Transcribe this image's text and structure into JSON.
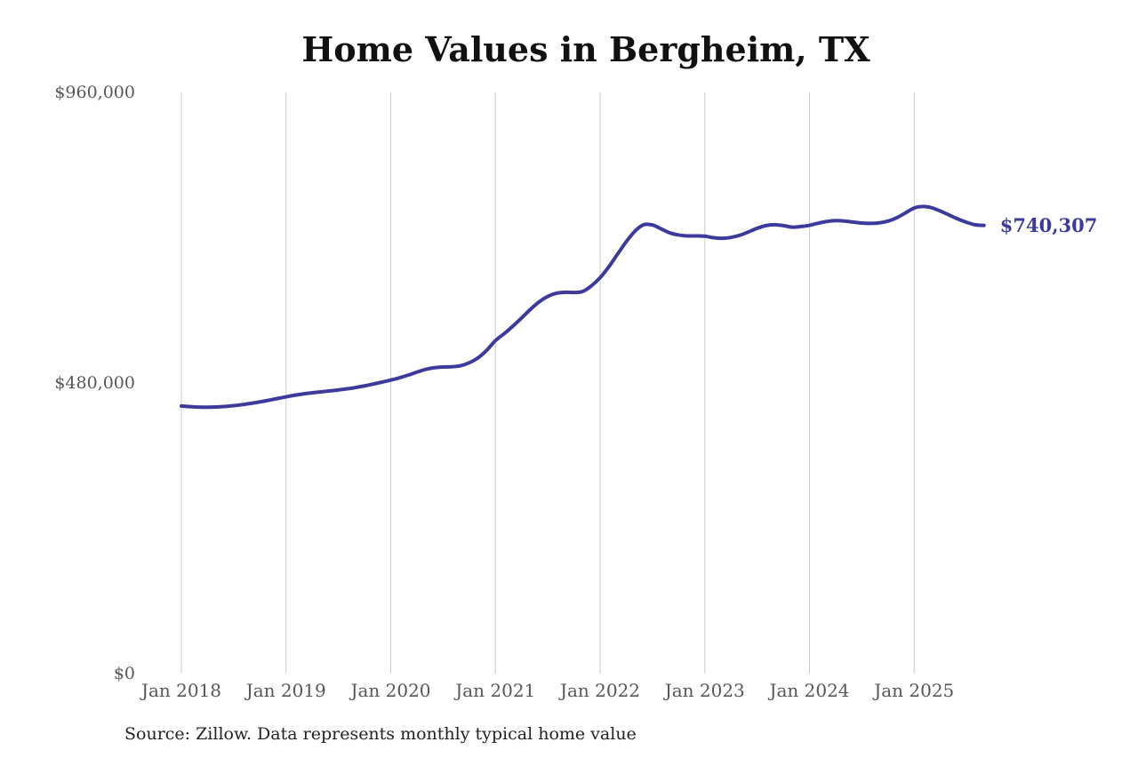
{
  "chart": {
    "title": "Home Values in Bergheim, TX",
    "end_label": "$740,307",
    "source_note": "Source: Zillow. Data represents monthly typical home value"
  },
  "colors": {
    "line": "#3d3a9d",
    "end_label_text": "#3d3a9d",
    "gridline": "#cccccc",
    "axis_text": "#575757",
    "title_text": "#111111",
    "source_text": "#222222",
    "background": "#ffffff"
  },
  "chart_data": {
    "type": "line",
    "title": "Home Values in Bergheim, TX",
    "xlabel": "",
    "ylabel": "",
    "ylim": [
      0,
      960000
    ],
    "grid": "vertical-only",
    "legend": "none",
    "x_tick_labels": [
      "Jan 2018",
      "Jan 2019",
      "Jan 2020",
      "Jan 2021",
      "Jan 2022",
      "Jan 2023",
      "Jan 2024",
      "Jan 2025"
    ],
    "y_ticks": [
      {
        "label": "$960,000",
        "value": 960000
      },
      {
        "label": "$480,000",
        "value": 480000
      },
      {
        "label": "$0",
        "value": 0
      }
    ],
    "series": [
      {
        "name": "Monthly typical home value",
        "frequency": "monthly",
        "start": "Jan 2018",
        "end": "Sep 2025",
        "values": [
          442000,
          441000,
          440200,
          440000,
          440300,
          441200,
          442500,
          444300,
          446400,
          448800,
          451500,
          454300,
          457200,
          459800,
          462000,
          463800,
          465400,
          466900,
          468500,
          470400,
          472600,
          475200,
          478200,
          481500,
          484900,
          488600,
          493000,
          498000,
          502500,
          505300,
          506500,
          506800,
          508500,
          513500,
          521500,
          534000,
          550000,
          561500,
          574000,
          587500,
          601500,
          614000,
          623000,
          628300,
          629800,
          629500,
          631200,
          640500,
          654000,
          672000,
          693000,
          713500,
          731000,
          741500,
          741000,
          734500,
          728000,
          724500,
          723000,
          723000,
          722500,
          720000,
          719000,
          720500,
          724000,
          729500,
          735500,
          740000,
          741500,
          740000,
          737500,
          738500,
          740500,
          744000,
          746800,
          748200,
          747500,
          745800,
          744200,
          743600,
          744600,
          747500,
          753000,
          761000,
          769000,
          771500,
          769500,
          764000,
          757500,
          751000,
          745500,
          741300,
          740307
        ]
      }
    ],
    "last_value": 740307,
    "last_value_label": "$740,307",
    "source": "Source: Zillow. Data represents monthly typical home value"
  }
}
